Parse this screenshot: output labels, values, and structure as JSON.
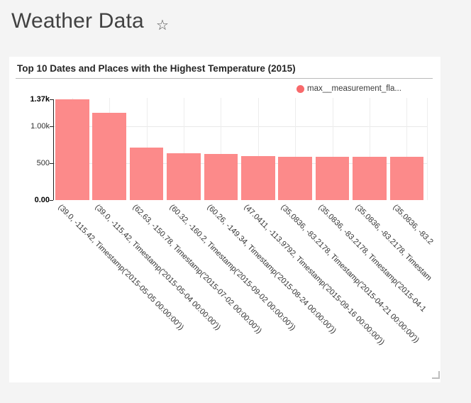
{
  "page": {
    "background": "#F4F4F4"
  },
  "header": {
    "title": "Weather Data",
    "star_glyph": "☆"
  },
  "card": {
    "title": "Top 10 Dates and Places with the Highest Temperature (2015)",
    "legend": {
      "label": "max__measurement_fla...",
      "dot_color": "#F8696B"
    }
  },
  "chart_data": {
    "type": "bar",
    "title": "Top 10 Dates and Places with the Highest Temperature (2015)",
    "series": [
      {
        "name": "max__measurement_fla...",
        "values": [
          1370,
          1185,
          710,
          632,
          624,
          600,
          593,
          592,
          591,
          590
        ]
      }
    ],
    "categories": [
      "(39.0, -115.42, Timestamp('2015-05-05 00:00:00'))",
      "(39.0, -115.42, Timestamp('2015-05-04 00:00:00'))",
      "(62.63, -150.78, Timestamp('2015-07-02 00:00:00'))",
      "(60.32, -160.2, Timestamp('2015-09-02 00:00:00'))",
      "(60.26, -149.34, Timestamp('2015-08-24 00:00:00'))",
      "(47.0411, -113.9792, Timestamp('2015-09-16 00:00:00'))",
      "(35.0836, -83.2178, Timestamp('2015-04-21 00:00:00'))",
      "(35.0836, -83.2178, Timestamp('2015-04-1",
      "(35.0836, -83.2178, Timestam",
      "(35.0836, -83.2"
    ],
    "y_ticks": [
      {
        "label": "1.37k",
        "value": 1370,
        "bold": true
      },
      {
        "label": "1.00k",
        "value": 1000,
        "bold": false
      },
      {
        "label": "500",
        "value": 500,
        "bold": false
      },
      {
        "label": "0.00",
        "value": 0,
        "bold": true
      }
    ],
    "ylim": [
      0,
      1370
    ],
    "xlabel": "",
    "ylabel": "",
    "x_label_rotation_deg": 45,
    "bar_color": "#FC8A8A",
    "grid": true,
    "legend_position": "top-right"
  }
}
